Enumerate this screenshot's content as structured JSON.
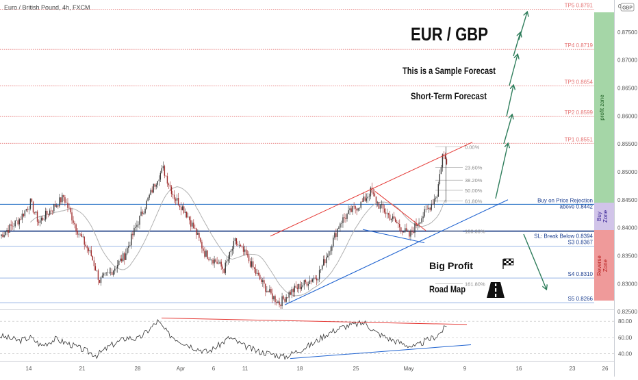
{
  "header": {
    "title": "Euro / British Pound, 4h, FXCM",
    "currency_badge": "GBP",
    "corner_value": "0"
  },
  "annotations": {
    "pair": "EUR / GBP",
    "sample": "This is a Sample Forecast",
    "short_term": "Short-Term Forecast",
    "big_profit": "Big Profit",
    "road_map": "Road Map"
  },
  "zones": {
    "profit": "profit zone",
    "buy": [
      "Buy",
      "Zone"
    ],
    "reverse": [
      "Reverse",
      "Zone"
    ]
  },
  "colors": {
    "profit_zone": "#a5d6a7",
    "buy_zone": "#d1c4e9",
    "reverse_zone": "#ef9a9a",
    "candle_up": "#3a3a3a",
    "candle_down": "#9e2a2a",
    "target_line": "#e57373",
    "blue_line": "#1565c0",
    "trend_blue": "#1e62d0",
    "trend_red": "#e53935",
    "arrow_green": "#2e7d5b",
    "rsi_line": "#333333",
    "ma_line": "#b0b0b0"
  },
  "chart_data": {
    "type": "candlestick",
    "title": "Euro / British Pound, 4h, FXCM",
    "ylim": [
      0.8255,
      0.8805
    ],
    "y_ticks": [
      0.825,
      0.83,
      0.835,
      0.84,
      0.845,
      0.85,
      0.855,
      0.86,
      0.865,
      0.87,
      0.875
    ],
    "x_ticks": [
      "14",
      "21",
      "28",
      "Apr",
      "6",
      "11",
      "18",
      "25",
      "May",
      "9",
      "16",
      "23",
      "26"
    ],
    "levels": [
      {
        "label": "TP5 0.8791",
        "value": 0.8791,
        "kind": "target"
      },
      {
        "label": "TP4 0.8719",
        "value": 0.8719,
        "kind": "target"
      },
      {
        "label": "TP3 0.8654",
        "value": 0.8654,
        "kind": "target"
      },
      {
        "label": "TP2 0.8599",
        "value": 0.8599,
        "kind": "target"
      },
      {
        "label": "TP1 0.8551",
        "value": 0.8551,
        "kind": "target"
      },
      {
        "label": "Buy on Price Rejection above 0.8442",
        "value": 0.8442,
        "kind": "buy"
      },
      {
        "label": "SL: Break Below 0.8394",
        "value": 0.8394,
        "kind": "stop"
      },
      {
        "label": "S3 0.8367",
        "value": 0.8367,
        "kind": "support"
      },
      {
        "label": "S4 0.8310",
        "value": 0.831,
        "kind": "support"
      },
      {
        "label": "S5 0.8266",
        "value": 0.8266,
        "kind": "support"
      }
    ],
    "fibonacci": [
      {
        "label": "0.00%",
        "value": 0.8545
      },
      {
        "label": "23.60%",
        "value": 0.8508
      },
      {
        "label": "38.20%",
        "value": 0.8485
      },
      {
        "label": "50.00%",
        "value": 0.8467
      },
      {
        "label": "61.80%",
        "value": 0.8448
      },
      {
        "label": "100.00%",
        "value": 0.8394
      },
      {
        "label": "161.80%",
        "value": 0.83
      }
    ],
    "anchors": [
      {
        "t": 0,
        "p": 0.8385
      },
      {
        "t": 14,
        "p": 0.8415
      },
      {
        "t": 22,
        "p": 0.8445
      },
      {
        "t": 28,
        "p": 0.841
      },
      {
        "t": 36,
        "p": 0.843
      },
      {
        "t": 46,
        "p": 0.8455
      },
      {
        "t": 56,
        "p": 0.8395
      },
      {
        "t": 66,
        "p": 0.835
      },
      {
        "t": 72,
        "p": 0.8305
      },
      {
        "t": 80,
        "p": 0.832
      },
      {
        "t": 90,
        "p": 0.835
      },
      {
        "t": 98,
        "p": 0.84
      },
      {
        "t": 106,
        "p": 0.8445
      },
      {
        "t": 114,
        "p": 0.849
      },
      {
        "t": 118,
        "p": 0.8505
      },
      {
        "t": 126,
        "p": 0.8455
      },
      {
        "t": 134,
        "p": 0.843
      },
      {
        "t": 142,
        "p": 0.839
      },
      {
        "t": 148,
        "p": 0.8355
      },
      {
        "t": 156,
        "p": 0.834
      },
      {
        "t": 162,
        "p": 0.8325
      },
      {
        "t": 170,
        "p": 0.8375
      },
      {
        "t": 178,
        "p": 0.835
      },
      {
        "t": 186,
        "p": 0.8315
      },
      {
        "t": 194,
        "p": 0.8285
      },
      {
        "t": 202,
        "p": 0.8265
      },
      {
        "t": 210,
        "p": 0.8285
      },
      {
        "t": 220,
        "p": 0.83
      },
      {
        "t": 230,
        "p": 0.8315
      },
      {
        "t": 238,
        "p": 0.836
      },
      {
        "t": 246,
        "p": 0.841
      },
      {
        "t": 254,
        "p": 0.843
      },
      {
        "t": 262,
        "p": 0.8445
      },
      {
        "t": 268,
        "p": 0.8465
      },
      {
        "t": 274,
        "p": 0.844
      },
      {
        "t": 282,
        "p": 0.842
      },
      {
        "t": 290,
        "p": 0.84
      },
      {
        "t": 296,
        "p": 0.8385
      },
      {
        "t": 302,
        "p": 0.841
      },
      {
        "t": 310,
        "p": 0.8435
      },
      {
        "t": 316,
        "p": 0.846
      },
      {
        "t": 320,
        "p": 0.853
      },
      {
        "t": 323,
        "p": 0.852
      }
    ],
    "rsi": {
      "ylim": [
        32,
        92
      ],
      "ticks": [
        40.0,
        60.0,
        80.0
      ],
      "anchors": [
        {
          "t": 0,
          "p": 62
        },
        {
          "t": 14,
          "p": 56
        },
        {
          "t": 22,
          "p": 60
        },
        {
          "t": 30,
          "p": 50
        },
        {
          "t": 40,
          "p": 58
        },
        {
          "t": 50,
          "p": 52
        },
        {
          "t": 60,
          "p": 45
        },
        {
          "t": 70,
          "p": 38
        },
        {
          "t": 80,
          "p": 50
        },
        {
          "t": 92,
          "p": 60
        },
        {
          "t": 100,
          "p": 58
        },
        {
          "t": 108,
          "p": 70
        },
        {
          "t": 114,
          "p": 80
        },
        {
          "t": 122,
          "p": 64
        },
        {
          "t": 130,
          "p": 56
        },
        {
          "t": 140,
          "p": 48
        },
        {
          "t": 150,
          "p": 42
        },
        {
          "t": 158,
          "p": 50
        },
        {
          "t": 166,
          "p": 60
        },
        {
          "t": 176,
          "p": 50
        },
        {
          "t": 186,
          "p": 43
        },
        {
          "t": 196,
          "p": 40
        },
        {
          "t": 206,
          "p": 36
        },
        {
          "t": 216,
          "p": 44
        },
        {
          "t": 226,
          "p": 52
        },
        {
          "t": 236,
          "p": 64
        },
        {
          "t": 246,
          "p": 72
        },
        {
          "t": 256,
          "p": 76
        },
        {
          "t": 264,
          "p": 78
        },
        {
          "t": 272,
          "p": 66
        },
        {
          "t": 282,
          "p": 58
        },
        {
          "t": 292,
          "p": 52
        },
        {
          "t": 300,
          "p": 48
        },
        {
          "t": 308,
          "p": 56
        },
        {
          "t": 316,
          "p": 62
        },
        {
          "t": 323,
          "p": 74
        }
      ]
    }
  }
}
